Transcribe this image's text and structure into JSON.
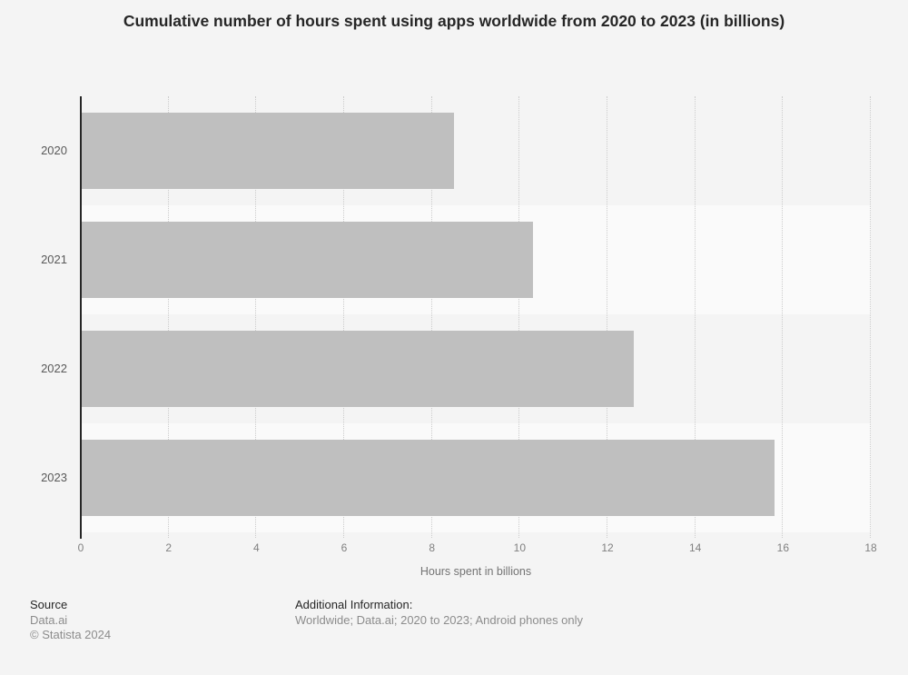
{
  "title": "Cumulative number of hours spent using apps worldwide from 2020 to 2023 (in billions)",
  "chart_data": {
    "type": "bar",
    "orientation": "horizontal",
    "title": "Cumulative number of hours spent using apps worldwide from 2020 to 2023 (in billions)",
    "categories": [
      "2020",
      "2021",
      "2022",
      "2023"
    ],
    "values": [
      8.5,
      10.3,
      12.6,
      15.8
    ],
    "xlabel": "Hours spent in billions",
    "ylabel": "",
    "xlim": [
      0,
      18
    ],
    "xticks": [
      0,
      2,
      4,
      6,
      8,
      10,
      12,
      14,
      16,
      18
    ],
    "grid": "vertical-dotted",
    "legend": "none"
  },
  "styles": {
    "bar_color": "#bfbfbf",
    "band_color_even": "#f4f4f4",
    "band_color_odd": "#fafafa",
    "gridline_color": "#cccccc",
    "axis_color": "#262626",
    "page_bg": "#f4f4f4"
  },
  "footer": {
    "source_label": "Source",
    "source_value": "Data.ai",
    "copyright": "© Statista 2024",
    "additional_label": "Additional Information:",
    "additional_value": "Worldwide; Data.ai; 2020 to 2023; Android phones only"
  }
}
